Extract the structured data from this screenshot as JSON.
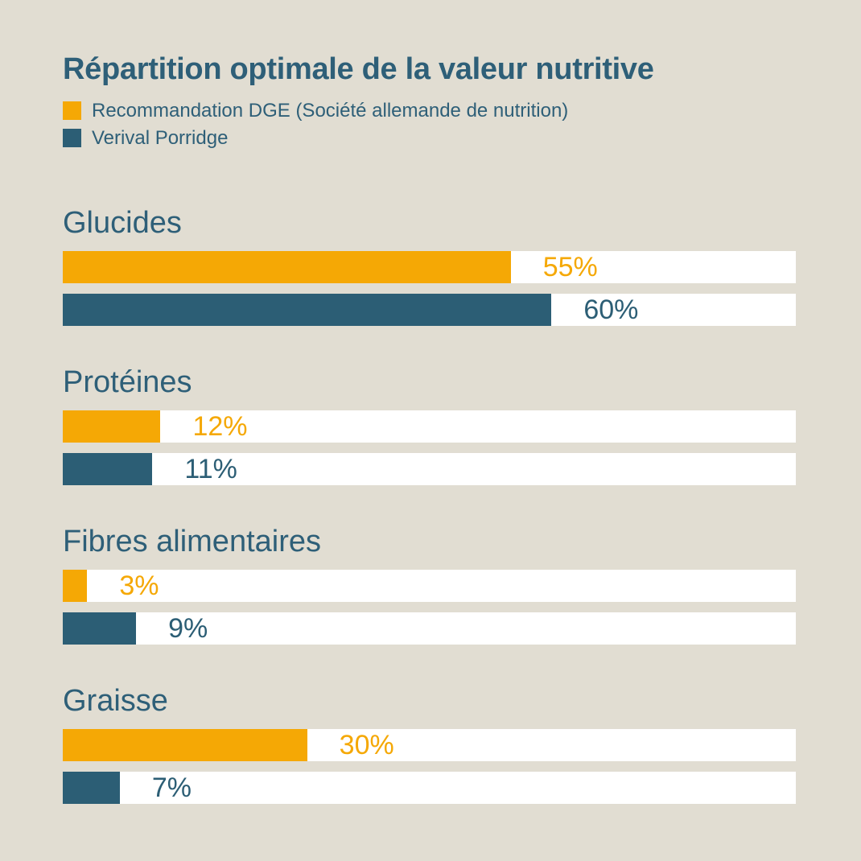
{
  "page": {
    "background": "#E1DDD2",
    "text_color": "#2E5F78",
    "track_color": "#FFFFFF"
  },
  "chart_data": {
    "type": "bar",
    "orientation": "horizontal",
    "title": "Répartition optimale de la valeur nutritive",
    "categories": [
      "Glucides",
      "Protéines",
      "Fibres alimentaires",
      "Graisse"
    ],
    "series": [
      {
        "name": "Recommandation DGE (Société allemande de nutrition)",
        "color": "#F5A805",
        "values": [
          55,
          12,
          3,
          30
        ],
        "labels": [
          "55%",
          "12%",
          "3%",
          "30%"
        ]
      },
      {
        "name": "Verival Porridge",
        "color": "#2C5E75",
        "values": [
          60,
          11,
          9,
          7
        ],
        "labels": [
          "60%",
          "11%",
          "9%",
          "7%"
        ]
      }
    ],
    "unit": "%",
    "xlim": [
      0,
      90
    ],
    "grid": false,
    "legend_position": "top-left",
    "value_label_position": "inside-track-after-fill"
  }
}
